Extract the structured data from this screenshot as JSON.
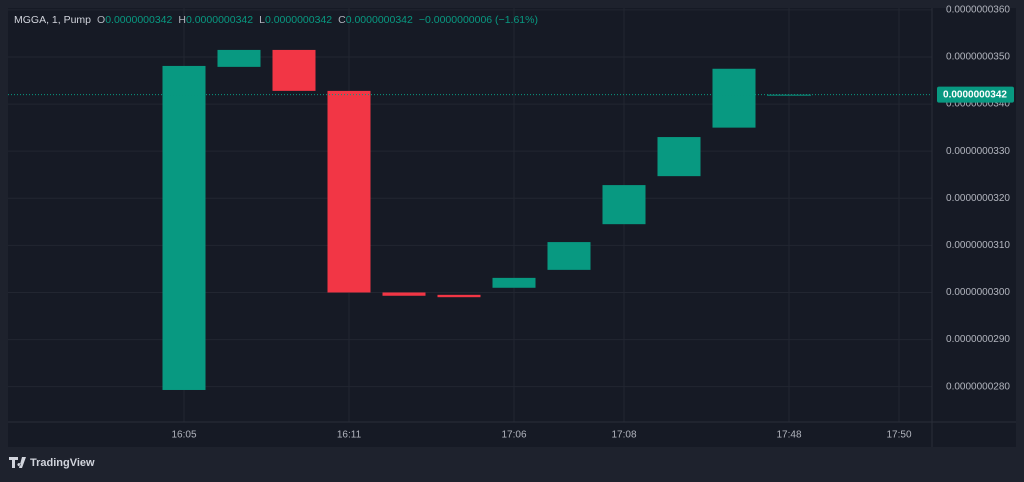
{
  "chart_data": {
    "type": "candlestick",
    "header": {
      "symbol": "MGGA, 1, Pump",
      "fields": [
        {
          "label": "O",
          "value": "0.0000000342"
        },
        {
          "label": "H",
          "value": "0.0000000342"
        },
        {
          "label": "L",
          "value": "0.0000000342"
        },
        {
          "label": "C",
          "value": "0.0000000342"
        }
      ],
      "change": "−0.0000000006 (−1.61%)"
    },
    "categories": [
      "16:05",
      null,
      null,
      "16:11",
      null,
      null,
      "17:06",
      null,
      "17:08",
      null,
      null,
      "17:48",
      null,
      "17:50"
    ],
    "open": [
      2.793e-08,
      3.479e-08,
      3.515e-08,
      3.428e-08,
      3e-08,
      2.995e-08,
      3.01e-08,
      3.048e-08,
      3.145e-08,
      3.247e-08,
      3.35e-08,
      3.42e-08,
      null,
      null
    ],
    "close": [
      3.481e-08,
      3.515e-08,
      3.428e-08,
      3e-08,
      2.993e-08,
      2.99e-08,
      3.031e-08,
      3.107e-08,
      3.228e-08,
      3.33e-08,
      3.475e-08,
      3.42e-08,
      null,
      null
    ],
    "up_color": "#089981",
    "down_color": "#f23645",
    "ylim": [
      2.725e-08,
      3.604e-08
    ],
    "yticks": [
      {
        "value": 2.8e-08,
        "label": "0.0000000280"
      },
      {
        "value": 2.9e-08,
        "label": "0.0000000290"
      },
      {
        "value": 3e-08,
        "label": "0.0000000300"
      },
      {
        "value": 3.1e-08,
        "label": "0.0000000310"
      },
      {
        "value": 3.2e-08,
        "label": "0.0000000320"
      },
      {
        "value": 3.3e-08,
        "label": "0.0000000330"
      },
      {
        "value": 3.4e-08,
        "label": "0.0000000340"
      },
      {
        "value": 3.5e-08,
        "label": "0.0000000350"
      },
      {
        "value": 3.6e-08,
        "label": "0.0000000360"
      }
    ],
    "last_price": {
      "value": 3.42e-08,
      "label": "0.0000000342"
    },
    "grid": true,
    "brand": "TradingView"
  }
}
